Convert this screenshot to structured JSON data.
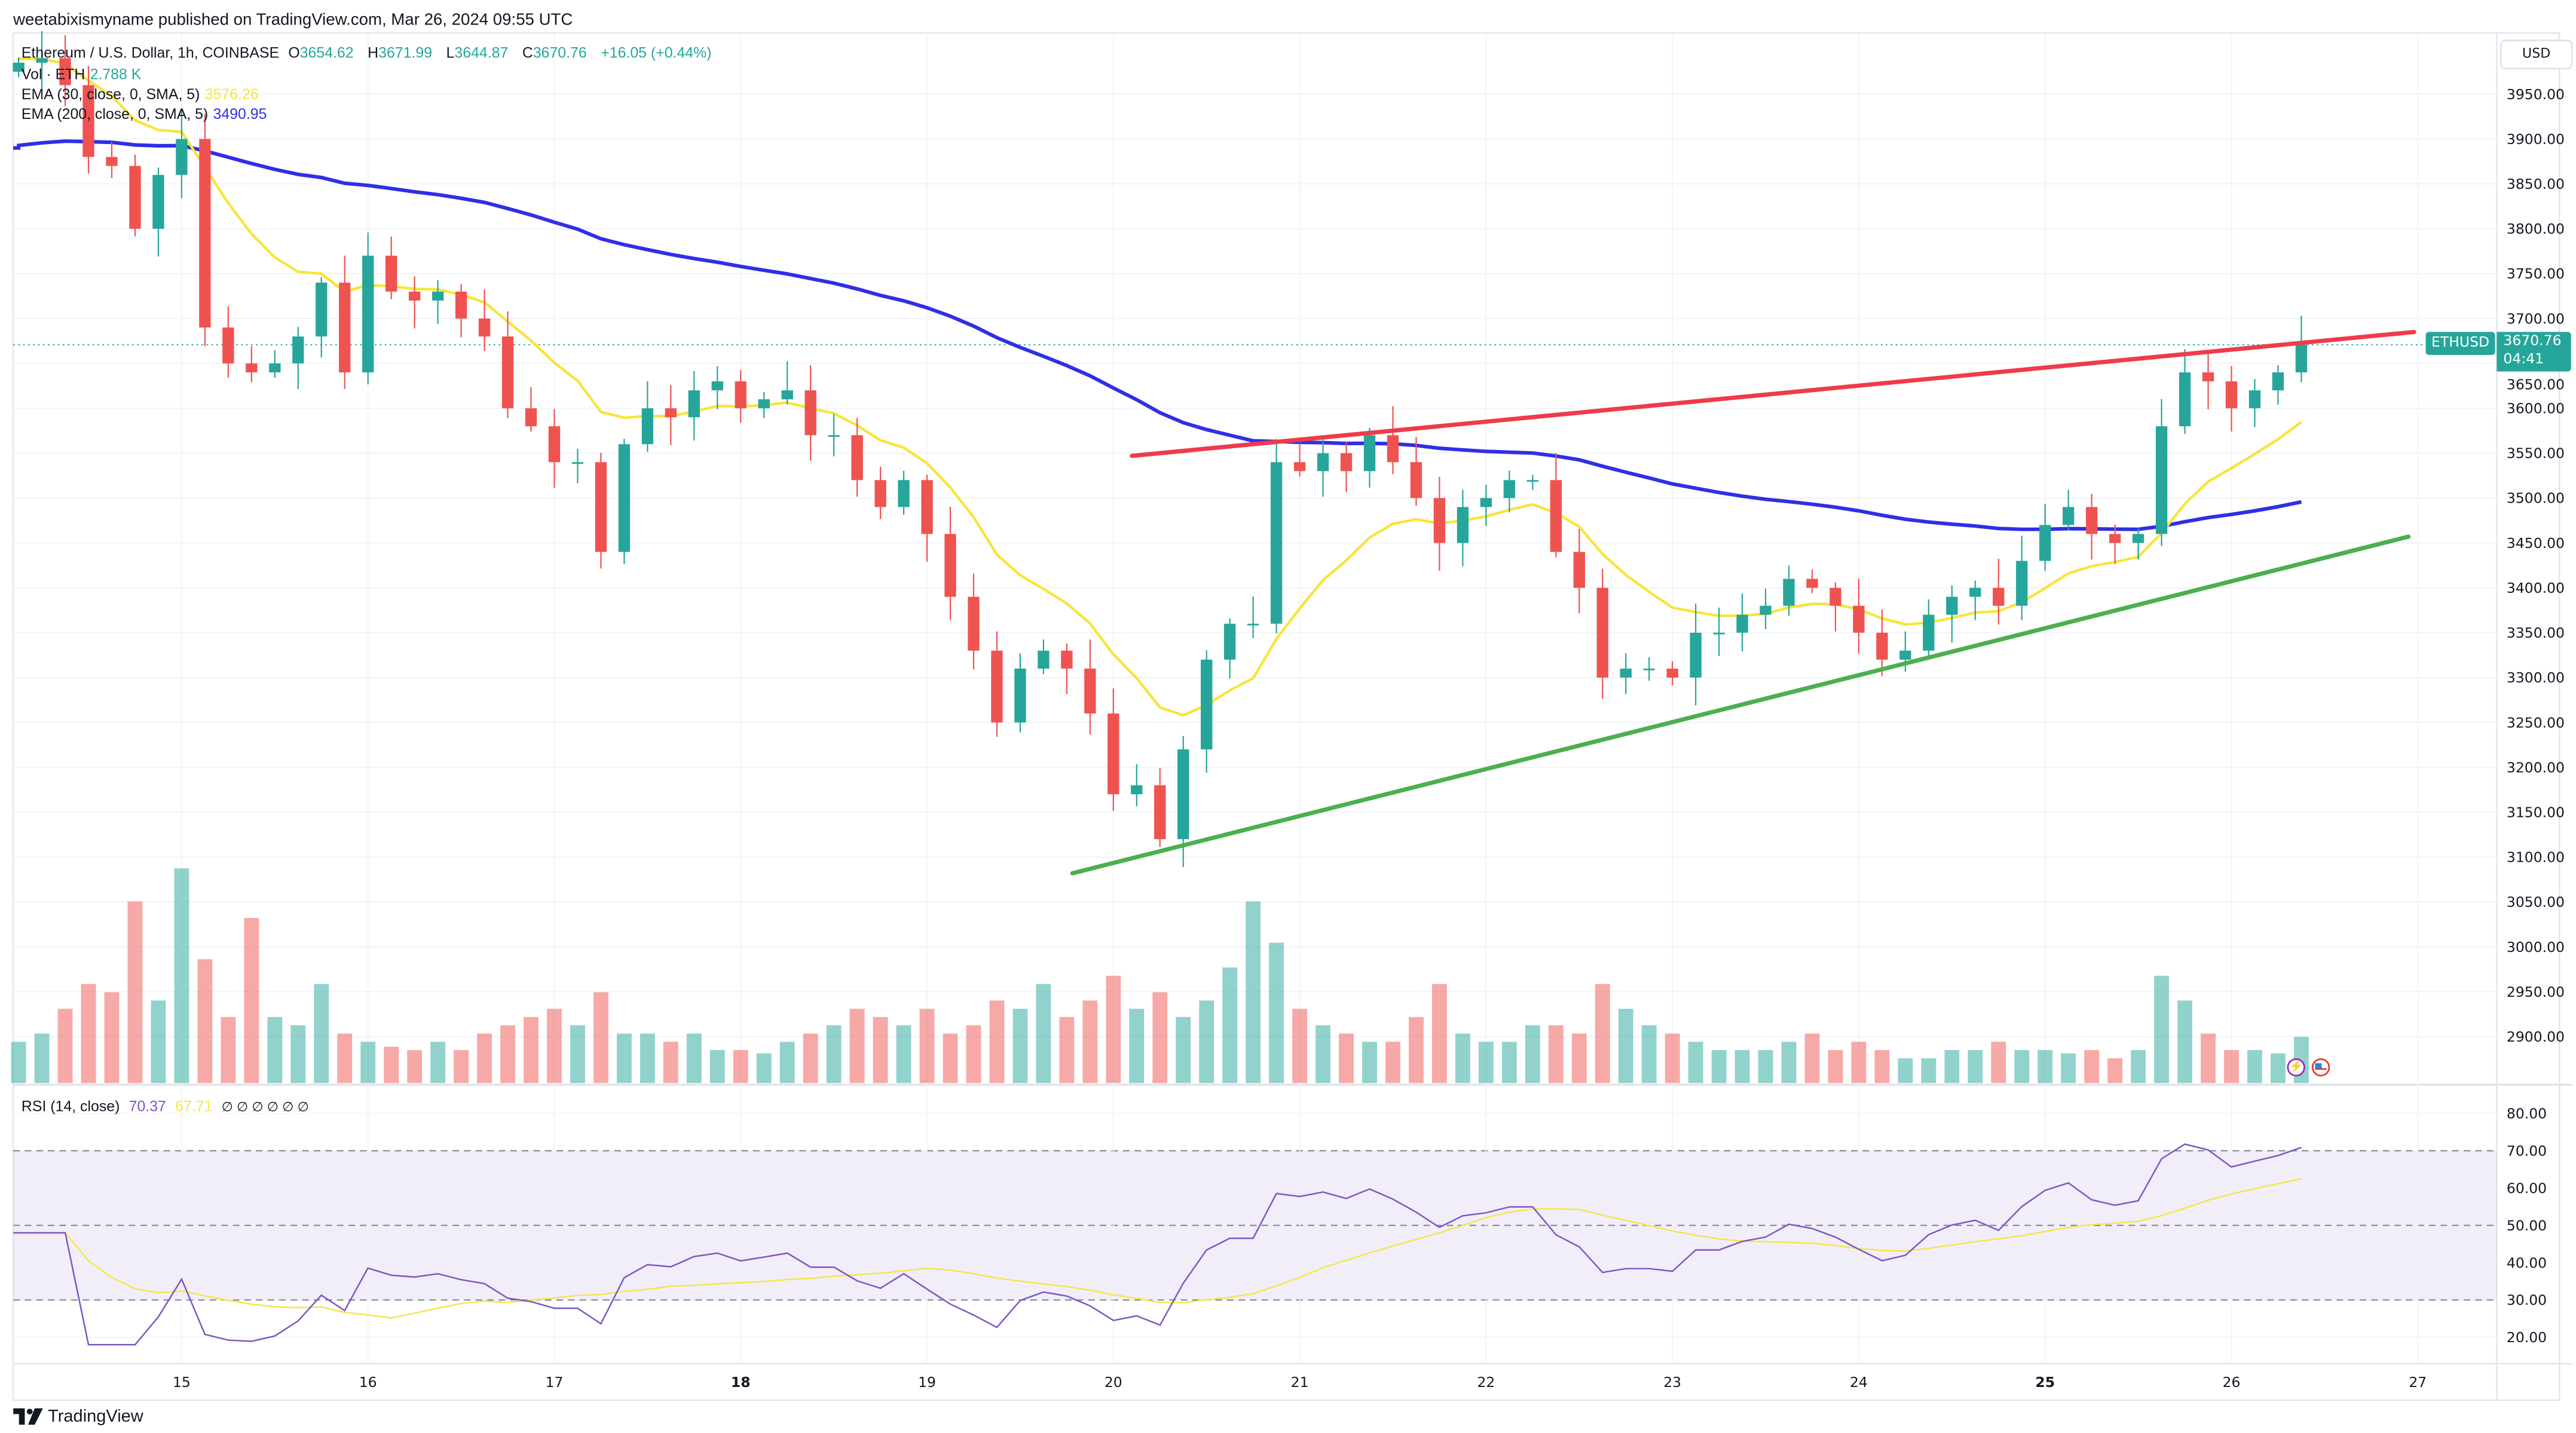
{
  "header": {
    "published": "weetabixismyname published on TradingView.com, Mar 26, 2024 09:55 UTC"
  },
  "legend": {
    "symbol": "Ethereum / U.S. Dollar, 1h, COINBASE",
    "o_label": "O",
    "o": "3654.62",
    "h_label": "H",
    "h": "3671.99",
    "l_label": "L",
    "l": "3644.87",
    "c_label": "C",
    "c": "3670.76",
    "change": "+16.05 (+0.44%)",
    "vol_label": "Vol · ETH",
    "vol": "2.788 K",
    "ema30_label": "EMA (30, close, 0, SMA, 5)",
    "ema30": "3576.26",
    "ema200_label": "EMA (200, close, 0, SMA, 5)",
    "ema200": "3490.95",
    "rsi_label": "RSI (14, close)",
    "rsi": "70.37",
    "rsi_ma": "67.71",
    "rsi_na": "∅ ∅ ∅ ∅ ∅ ∅"
  },
  "price_axis": {
    "currency": "USD",
    "symbol_tag": "ETHUSD",
    "last_price": "3670.76",
    "countdown": "04:41",
    "ticks": [
      "3950.00",
      "3900.00",
      "3850.00",
      "3800.00",
      "3750.00",
      "3700.00",
      "3650.00",
      "3600.00",
      "3550.00",
      "3500.00",
      "3450.00",
      "3400.00",
      "3350.00",
      "3300.00",
      "3250.00",
      "3200.00",
      "3150.00",
      "3100.00",
      "3050.00",
      "3000.00",
      "2950.00",
      "2900.00"
    ]
  },
  "rsi_axis": {
    "ticks": [
      "80.00",
      "70.00",
      "60.00",
      "50.00",
      "40.00",
      "30.00",
      "20.00"
    ]
  },
  "time_axis": {
    "ticks": [
      "15",
      "16",
      "17",
      "18",
      "19",
      "20",
      "21",
      "22",
      "23",
      "24",
      "25",
      "26",
      "27"
    ],
    "bold": [
      "18",
      "25"
    ]
  },
  "footer": {
    "brand": "TradingView"
  },
  "icons": {
    "event": "lightning-icon",
    "flag": "us-flag-icon"
  },
  "colors": {
    "up": "#26a69a",
    "down": "#ef5350",
    "ema30": "#f7e53b",
    "ema200": "#2f2fe6",
    "rsi": "#7e57c2",
    "rsi_ma": "#f5e64a",
    "resistance": "#ef3b4a",
    "support": "#4caf50"
  },
  "chart_data": {
    "type": "candlestick",
    "interval": "3h (resampled)",
    "start": "Mar 14 03:00",
    "closes": [
      3985,
      3990,
      3960,
      3880,
      3870,
      3800,
      3860,
      3900,
      3690,
      3650,
      3640,
      3650,
      3680,
      3740,
      3640,
      3770,
      3730,
      3720,
      3730,
      3700,
      3680,
      3600,
      3580,
      3540,
      3540,
      3440,
      3560,
      3600,
      3590,
      3620,
      3630,
      3600,
      3610,
      3620,
      3570,
      3570,
      3520,
      3490,
      3520,
      3460,
      3390,
      3330,
      3250,
      3310,
      3330,
      3310,
      3260,
      3170,
      3180,
      3120,
      3220,
      3320,
      3360,
      3360,
      3540,
      3530,
      3550,
      3530,
      3570,
      3540,
      3500,
      3450,
      3490,
      3500,
      3520,
      3520,
      3440,
      3400,
      3300,
      3310,
      3310,
      3300,
      3350,
      3350,
      3370,
      3380,
      3410,
      3400,
      3380,
      3350,
      3320,
      3330,
      3370,
      3390,
      3400,
      3380,
      3430,
      3470,
      3490,
      3460,
      3450,
      3460,
      3580,
      3640,
      3630,
      3600,
      3620,
      3640,
      3670.76
    ],
    "volume_k": [
      2.5,
      3.0,
      4.5,
      6.0,
      5.5,
      11.0,
      5.0,
      13.0,
      7.5,
      4.0,
      10.0,
      4.0,
      3.5,
      6.0,
      3.0,
      2.5,
      2.2,
      2.0,
      2.5,
      2.0,
      3.0,
      3.5,
      4.0,
      4.5,
      3.5,
      5.5,
      3.0,
      3.0,
      2.5,
      3.0,
      2.0,
      2.0,
      1.8,
      2.5,
      3.0,
      3.5,
      4.5,
      4.0,
      3.5,
      4.5,
      3.0,
      3.5,
      5.0,
      4.5,
      6.0,
      4.0,
      5.0,
      6.5,
      4.5,
      5.5,
      4.0,
      5.0,
      7.0,
      11.0,
      8.5,
      4.5,
      3.5,
      3.0,
      2.5,
      2.5,
      4.0,
      6.0,
      3.0,
      2.5,
      2.5,
      3.5,
      3.5,
      3.0,
      6.0,
      4.5,
      3.5,
      3.0,
      2.5,
      2.0,
      2.0,
      2.0,
      2.5,
      3.0,
      2.0,
      2.5,
      2.0,
      1.5,
      1.5,
      2.0,
      2.0,
      2.5,
      2.0,
      2.0,
      1.8,
      2.0,
      1.5,
      2.0,
      6.5,
      5.0,
      3.0,
      2.0,
      2.0,
      1.8,
      2.8
    ],
    "trendlines": [
      {
        "color": "resistance",
        "from": {
          "date": "Mar 20.10",
          "day": 20.1,
          "price": 3547
        },
        "to": {
          "date": "Mar 26.98",
          "day": 26.98,
          "price": 3685
        }
      },
      {
        "color": "support",
        "from": {
          "date": "Mar 19.78",
          "day": 19.78,
          "price": 3082
        },
        "to": {
          "date": "Mar 26.95",
          "day": 26.95,
          "price": 3457
        }
      }
    ],
    "ema_periods": [
      30,
      200
    ],
    "rsi_period": 14,
    "rsi_levels": [
      70,
      50,
      30
    ],
    "price_range": [
      2850,
      3990
    ],
    "rsi_range": [
      15,
      85
    ],
    "grid": true
  }
}
